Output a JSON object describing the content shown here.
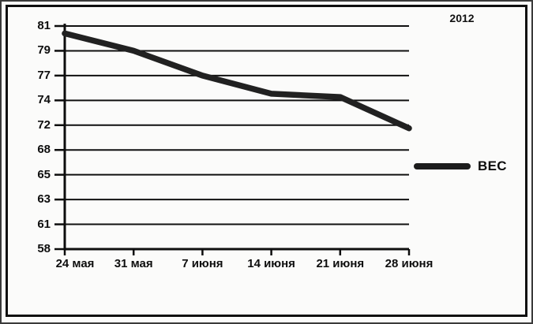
{
  "chart_data": {
    "type": "line",
    "title": "",
    "annotation": "2012",
    "categories": [
      "24 мая",
      "31 мая",
      "7 июня",
      "14 июня",
      "21 июня",
      "28 июня"
    ],
    "series": [
      {
        "name": "ВЕС",
        "values": [
          80.4,
          79.0,
          77.0,
          74.8,
          74.4,
          71.5
        ]
      }
    ],
    "y_ticks": [
      81,
      79,
      77,
      74,
      72,
      68,
      65,
      63,
      61,
      58
    ],
    "xlabel": "",
    "ylabel": "",
    "grid": true,
    "legend_position": "right",
    "colors": {
      "line": "#212121",
      "grid": "#101010",
      "axis": "#0d0d0d",
      "background": "#fbfbfa",
      "frame": "#0f0f0f",
      "text": "#0e0e0e"
    }
  }
}
